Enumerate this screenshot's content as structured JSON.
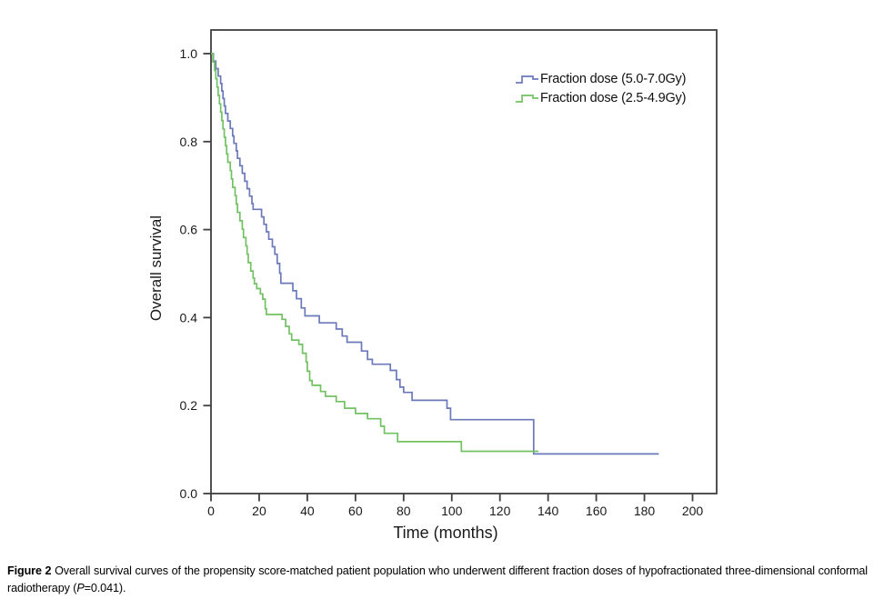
{
  "figure": {
    "caption": {
      "label": "Figure 2",
      "body": " Overall survival curves of the propensity score-matched patient population who underwent different fraction doses of hypofractionated three-dimensional conformal radiotherapy (",
      "p_symbol": "P",
      "tail": "=0.041)."
    }
  },
  "chart_data": {
    "type": "line",
    "subtype": "kaplan-meier-step",
    "title": "",
    "xlabel": "Time (months)",
    "ylabel": "Overall survival",
    "xlim": [
      0,
      210
    ],
    "ylim": [
      0.0,
      1.0
    ],
    "grid": false,
    "legend_position": "top-right-inside",
    "xtick_values": [
      0,
      20,
      40,
      60,
      80,
      100,
      120,
      140,
      160,
      180,
      200
    ],
    "xtick_labels": [
      "0",
      "20",
      "40",
      "60",
      "80",
      "100",
      "120",
      "140",
      "160",
      "180",
      "200"
    ],
    "ytick_values": [
      0.0,
      0.2,
      0.4,
      0.6,
      0.8,
      1.0
    ],
    "ytick_labels": [
      "0.0",
      "0.2",
      "0.4",
      "0.6",
      "0.8",
      "1.0"
    ],
    "series": [
      {
        "name": "Fraction dose (5.0-7.0Gy)",
        "color": "#6b79bb",
        "end_time": 186,
        "points": [
          [
            0,
            1.0
          ],
          [
            1,
            0.983
          ],
          [
            2,
            0.966
          ],
          [
            3,
            0.949
          ],
          [
            4,
            0.932
          ],
          [
            4.5,
            0.915
          ],
          [
            5,
            0.898
          ],
          [
            5.5,
            0.881
          ],
          [
            6,
            0.864
          ],
          [
            7,
            0.847
          ],
          [
            8,
            0.83
          ],
          [
            9,
            0.813
          ],
          [
            9.5,
            0.796
          ],
          [
            10.5,
            0.779
          ],
          [
            11,
            0.762
          ],
          [
            12,
            0.745
          ],
          [
            13,
            0.728
          ],
          [
            14,
            0.71
          ],
          [
            15,
            0.693
          ],
          [
            16,
            0.676
          ],
          [
            17,
            0.659
          ],
          [
            17.5,
            0.646
          ],
          [
            21,
            0.629
          ],
          [
            22,
            0.612
          ],
          [
            23,
            0.595
          ],
          [
            24,
            0.578
          ],
          [
            25.5,
            0.561
          ],
          [
            26.5,
            0.544
          ],
          [
            27.5,
            0.523
          ],
          [
            28.5,
            0.501
          ],
          [
            29,
            0.478
          ],
          [
            34,
            0.461
          ],
          [
            35.5,
            0.443
          ],
          [
            37.5,
            0.422
          ],
          [
            39,
            0.404
          ],
          [
            45,
            0.388
          ],
          [
            52,
            0.374
          ],
          [
            54.5,
            0.358
          ],
          [
            56.5,
            0.344
          ],
          [
            62.5,
            0.324
          ],
          [
            65,
            0.305
          ],
          [
            67,
            0.294
          ],
          [
            74.5,
            0.28
          ],
          [
            77,
            0.259
          ],
          [
            78.5,
            0.242
          ],
          [
            80,
            0.23
          ],
          [
            83.5,
            0.212
          ],
          [
            98,
            0.194
          ],
          [
            99.5,
            0.168
          ],
          [
            134,
            0.09
          ]
        ]
      },
      {
        "name": "Fraction dose (2.5-4.9Gy)",
        "color": "#72c163",
        "end_time": 136,
        "points": [
          [
            0,
            1.0
          ],
          [
            0.8,
            0.981
          ],
          [
            1.5,
            0.962
          ],
          [
            2,
            0.943
          ],
          [
            2.5,
            0.924
          ],
          [
            3,
            0.905
          ],
          [
            3.5,
            0.886
          ],
          [
            4,
            0.867
          ],
          [
            4.5,
            0.848
          ],
          [
            5,
            0.829
          ],
          [
            5.5,
            0.81
          ],
          [
            6,
            0.791
          ],
          [
            6.5,
            0.772
          ],
          [
            7,
            0.753
          ],
          [
            8,
            0.734
          ],
          [
            8.5,
            0.715
          ],
          [
            9,
            0.696
          ],
          [
            10,
            0.677
          ],
          [
            10.5,
            0.658
          ],
          [
            11,
            0.639
          ],
          [
            12,
            0.62
          ],
          [
            13,
            0.601
          ],
          [
            13.5,
            0.582
          ],
          [
            14.5,
            0.563
          ],
          [
            15,
            0.544
          ],
          [
            15.5,
            0.525
          ],
          [
            16.5,
            0.506
          ],
          [
            17.5,
            0.49
          ],
          [
            18,
            0.477
          ],
          [
            19,
            0.466
          ],
          [
            20.5,
            0.454
          ],
          [
            21.5,
            0.442
          ],
          [
            22.5,
            0.42
          ],
          [
            23,
            0.407
          ],
          [
            29.5,
            0.396
          ],
          [
            31,
            0.38
          ],
          [
            32.5,
            0.363
          ],
          [
            33.5,
            0.349
          ],
          [
            36.5,
            0.339
          ],
          [
            38,
            0.319
          ],
          [
            39.5,
            0.299
          ],
          [
            40,
            0.278
          ],
          [
            41,
            0.257
          ],
          [
            42,
            0.246
          ],
          [
            45.5,
            0.232
          ],
          [
            47.5,
            0.221
          ],
          [
            52,
            0.209
          ],
          [
            55.5,
            0.194
          ],
          [
            60,
            0.182
          ],
          [
            65,
            0.17
          ],
          [
            70.5,
            0.153
          ],
          [
            72,
            0.137
          ],
          [
            77.5,
            0.118
          ],
          [
            104,
            0.096
          ]
        ]
      }
    ]
  }
}
